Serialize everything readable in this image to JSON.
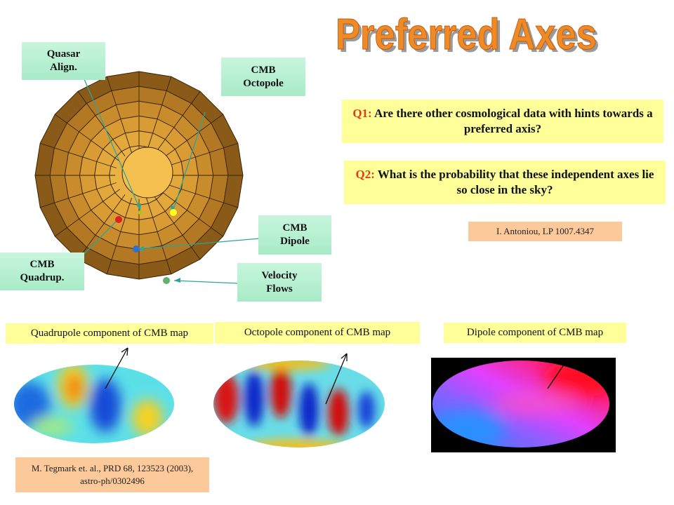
{
  "title": "Preferred Axes",
  "sphere_labels": {
    "quasar": "Quasar Align.",
    "octopole": "CMB Octopole",
    "dipole": "CMB Dipole",
    "quadrupole": "CMB Quadrup.",
    "velocity": "Velocity Flows"
  },
  "questions": {
    "q1_tag": "Q1:",
    "q1_text": "Are there other cosmological data with hints towards a preferred axis?",
    "q2_tag": "Q2:",
    "q2_text": "What is the probability that these independent axes lie so close in the sky?"
  },
  "citations": {
    "antoniou": "I. Antoniou, LP 1007.4347",
    "tegmark": "M. Tegmark et. al., PRD 68, 123523 (2003), astro-ph/0302496"
  },
  "maps": {
    "quadrupole_label": "Quadrupole component of CMB map",
    "octopole_label": "Octopole component of CMB map",
    "dipole_label": "Dipole component of CMB map"
  },
  "colors": {
    "title_orange": "#f08a24",
    "question_tag": "#e23b1a",
    "label_bg": "#b8f0d2",
    "question_bg": "#ffff99",
    "citation_bg": "#fcc99a",
    "sphere_face": "#e0a030",
    "pointer_line": "#2aa59a"
  }
}
